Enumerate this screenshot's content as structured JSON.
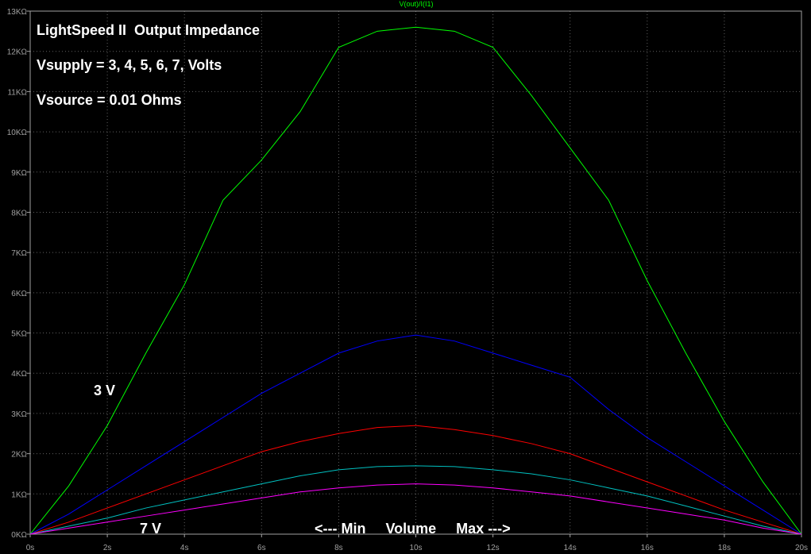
{
  "chart_data": {
    "type": "line",
    "title": "V(out)/I(I1)",
    "annotations": [
      "LightSpeed II  Output Impedance",
      "Vsupply = 3, 4, 5, 6, 7, Volts",
      "Vsource = 0.01 Ohms",
      "3 V",
      "7 V",
      "<--- Min     Volume     Max --->"
    ],
    "x": [
      0,
      1,
      2,
      3,
      4,
      5,
      6,
      7,
      8,
      9,
      10,
      11,
      12,
      13,
      14,
      15,
      16,
      17,
      18,
      19,
      20
    ],
    "series": [
      {
        "color": "#00ff00",
        "values": [
          0,
          1.2,
          2.7,
          4.5,
          6.2,
          8.3,
          9.3,
          10.5,
          12.1,
          12.5,
          12.6,
          12.5,
          12.1,
          10.9,
          9.6,
          8.3,
          6.3,
          4.5,
          2.8,
          1.3,
          0
        ]
      },
      {
        "color": "#0000ff",
        "values": [
          0,
          0.5,
          1.1,
          1.7,
          2.3,
          2.9,
          3.5,
          4.0,
          4.5,
          4.8,
          4.95,
          4.8,
          4.5,
          4.2,
          3.9,
          3.1,
          2.4,
          1.8,
          1.2,
          0.6,
          0
        ]
      },
      {
        "color": "#ff0000",
        "values": [
          0,
          0.3,
          0.65,
          1.0,
          1.35,
          1.7,
          2.05,
          2.3,
          2.5,
          2.65,
          2.7,
          2.6,
          2.45,
          2.25,
          2.0,
          1.65,
          1.3,
          0.95,
          0.6,
          0.3,
          0
        ]
      },
      {
        "color": "#00c0c0",
        "values": [
          0,
          0.2,
          0.4,
          0.65,
          0.85,
          1.05,
          1.25,
          1.45,
          1.6,
          1.68,
          1.7,
          1.68,
          1.6,
          1.5,
          1.35,
          1.15,
          0.95,
          0.7,
          0.45,
          0.2,
          0
        ]
      },
      {
        "color": "#ff00ff",
        "values": [
          0,
          0.15,
          0.3,
          0.45,
          0.6,
          0.75,
          0.9,
          1.05,
          1.15,
          1.22,
          1.25,
          1.22,
          1.15,
          1.05,
          0.95,
          0.8,
          0.65,
          0.5,
          0.35,
          0.15,
          0
        ]
      }
    ],
    "xlim": [
      0,
      20
    ],
    "xticks": [
      {
        "value": 0,
        "label": "0s"
      },
      {
        "value": 2,
        "label": "2s"
      },
      {
        "value": 4,
        "label": "4s"
      },
      {
        "value": 6,
        "label": "6s"
      },
      {
        "value": 8,
        "label": "8s"
      },
      {
        "value": 10,
        "label": "10s"
      },
      {
        "value": 12,
        "label": "12s"
      },
      {
        "value": 14,
        "label": "14s"
      },
      {
        "value": 16,
        "label": "16s"
      },
      {
        "value": 18,
        "label": "18s"
      },
      {
        "value": 20,
        "label": "20s"
      }
    ],
    "ylim": [
      0,
      13
    ],
    "yticks": [
      {
        "value": 0,
        "label": "0KΩ"
      },
      {
        "value": 1,
        "label": "1KΩ"
      },
      {
        "value": 2,
        "label": "2KΩ"
      },
      {
        "value": 3,
        "label": "3KΩ"
      },
      {
        "value": 4,
        "label": "4KΩ"
      },
      {
        "value": 5,
        "label": "5KΩ"
      },
      {
        "value": 6,
        "label": "6KΩ"
      },
      {
        "value": 7,
        "label": "7KΩ"
      },
      {
        "value": 8,
        "label": "8KΩ"
      },
      {
        "value": 9,
        "label": "9KΩ"
      },
      {
        "value": 10,
        "label": "10KΩ"
      },
      {
        "value": 11,
        "label": "11KΩ"
      },
      {
        "value": 12,
        "label": "12KΩ"
      },
      {
        "value": 13,
        "label": "13KΩ"
      }
    ],
    "grid": true,
    "background": "#000000"
  }
}
